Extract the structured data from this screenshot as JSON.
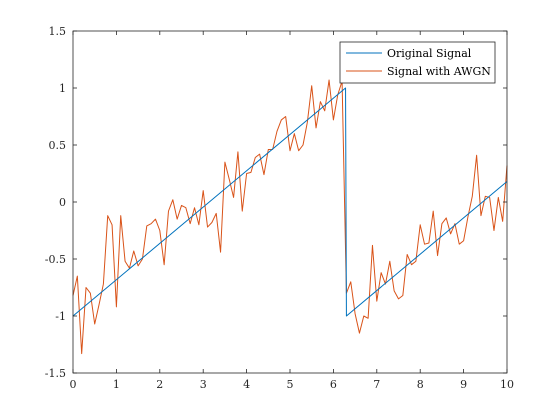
{
  "chart_data": {
    "type": "line",
    "title": "",
    "xlabel": "",
    "ylabel": "",
    "xlim": [
      0,
      10
    ],
    "ylim": [
      -1.5,
      1.5
    ],
    "x_ticks": [
      0,
      1,
      2,
      3,
      4,
      5,
      6,
      7,
      8,
      9,
      10
    ],
    "y_ticks": [
      -1.5,
      -1,
      -0.5,
      0,
      0.5,
      1,
      1.5
    ],
    "x_tick_labels": [
      "0",
      "1",
      "2",
      "3",
      "4",
      "5",
      "6",
      "7",
      "8",
      "9",
      "10"
    ],
    "y_tick_labels": [
      "-1.5",
      "-1",
      "-0.5",
      "0",
      "0.5",
      "1",
      "1.5"
    ],
    "grid": false,
    "legend_position": "top-right",
    "series": [
      {
        "name": "Original Signal",
        "color": "#0072BD",
        "x": [
          0,
          6.28,
          6.3,
          10
        ],
        "y": [
          -1.0,
          1.0,
          -1.0,
          0.18
        ]
      },
      {
        "name": "Signal with AWGN",
        "color": "#D95319",
        "x": [
          0,
          0.1,
          0.2,
          0.3,
          0.4,
          0.5,
          0.6,
          0.7,
          0.8,
          0.9,
          1.0,
          1.1,
          1.2,
          1.3,
          1.4,
          1.5,
          1.6,
          1.7,
          1.8,
          1.9,
          2.0,
          2.1,
          2.2,
          2.3,
          2.4,
          2.5,
          2.6,
          2.7,
          2.8,
          2.9,
          3.0,
          3.1,
          3.2,
          3.3,
          3.4,
          3.5,
          3.6,
          3.7,
          3.8,
          3.9,
          4.0,
          4.1,
          4.2,
          4.3,
          4.4,
          4.5,
          4.6,
          4.7,
          4.8,
          4.9,
          5.0,
          5.1,
          5.2,
          5.3,
          5.4,
          5.5,
          5.6,
          5.7,
          5.8,
          5.9,
          6.0,
          6.1,
          6.2,
          6.3,
          6.4,
          6.5,
          6.6,
          6.7,
          6.8,
          6.9,
          7.0,
          7.1,
          7.2,
          7.3,
          7.4,
          7.5,
          7.6,
          7.7,
          7.8,
          7.9,
          8.0,
          8.1,
          8.2,
          8.3,
          8.4,
          8.5,
          8.6,
          8.7,
          8.8,
          8.9,
          9.0,
          9.1,
          9.2,
          9.3,
          9.4,
          9.5,
          9.6,
          9.7,
          9.8,
          9.9,
          10.0
        ],
        "y": [
          -0.82,
          -0.65,
          -1.33,
          -0.75,
          -0.8,
          -1.07,
          -0.9,
          -0.72,
          -0.12,
          -0.2,
          -0.92,
          -0.12,
          -0.52,
          -0.58,
          -0.43,
          -0.56,
          -0.5,
          -0.21,
          -0.19,
          -0.15,
          -0.25,
          -0.55,
          -0.08,
          0.02,
          -0.15,
          -0.03,
          -0.05,
          -0.19,
          -0.05,
          -0.2,
          0.1,
          -0.22,
          -0.18,
          -0.1,
          -0.44,
          0.35,
          0.2,
          0.04,
          0.44,
          -0.08,
          0.25,
          0.26,
          0.39,
          0.42,
          0.24,
          0.46,
          0.46,
          0.62,
          0.72,
          0.75,
          0.45,
          0.6,
          0.45,
          0.5,
          0.7,
          1.02,
          0.65,
          0.88,
          0.8,
          1.07,
          0.72,
          0.94,
          1.06,
          -0.8,
          -0.7,
          -0.98,
          -1.15,
          -1.0,
          -1.02,
          -0.38,
          -0.87,
          -0.62,
          -0.72,
          -0.52,
          -0.78,
          -0.85,
          -0.82,
          -0.46,
          -0.55,
          -0.52,
          -0.2,
          -0.37,
          -0.36,
          -0.08,
          -0.47,
          -0.19,
          -0.14,
          -0.28,
          -0.19,
          -0.37,
          -0.34,
          -0.13,
          0.05,
          0.41,
          -0.12,
          0.05,
          0.04,
          -0.25,
          0.04,
          -0.17,
          0.32
        ]
      }
    ]
  }
}
